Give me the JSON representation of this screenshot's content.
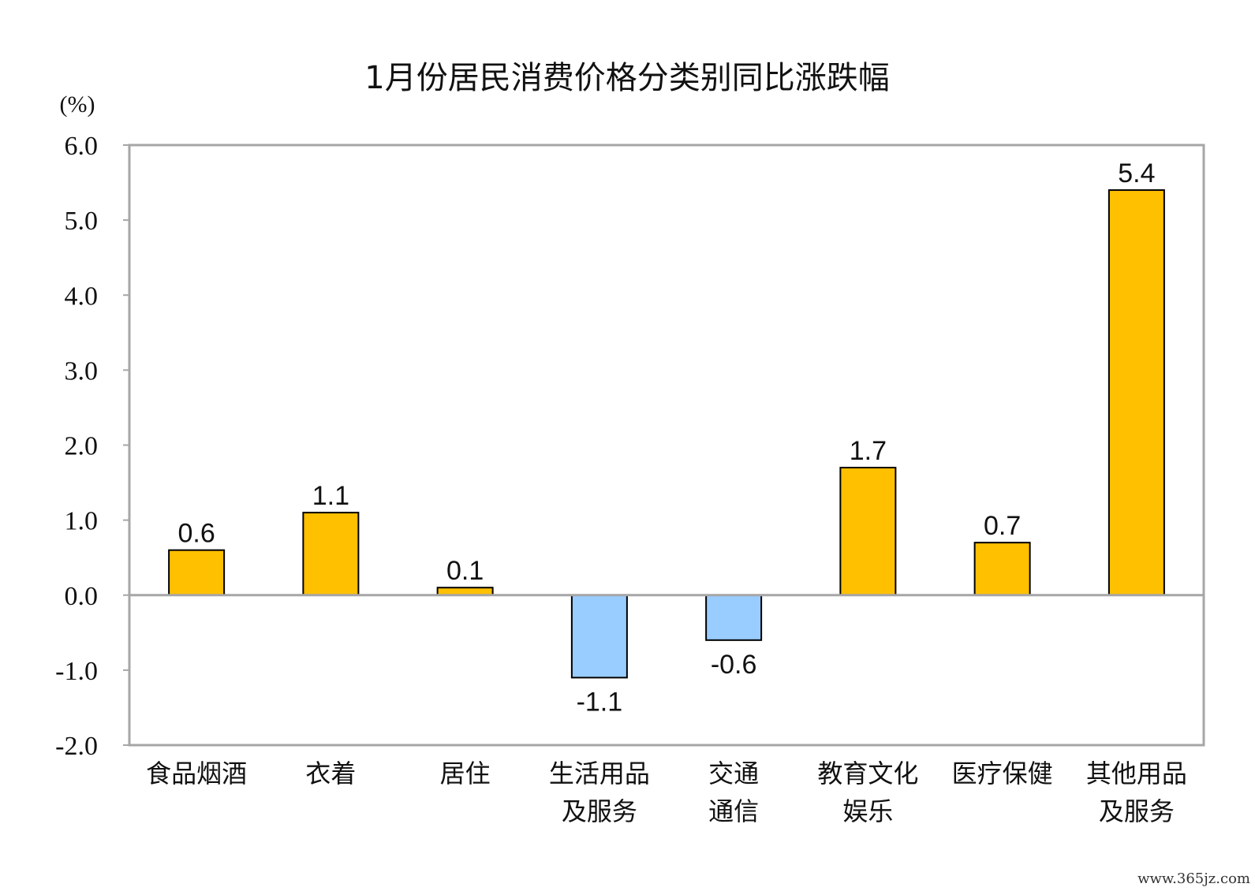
{
  "chart_data": {
    "type": "bar",
    "title": "1月份居民消费价格分类别同比涨跌幅",
    "unit": "(%)",
    "categories": [
      [
        "食品烟酒"
      ],
      [
        "衣着"
      ],
      [
        "居住"
      ],
      [
        "生活用品",
        "及服务"
      ],
      [
        "交通",
        "通信"
      ],
      [
        "教育文化",
        "娱乐"
      ],
      [
        "医疗保健"
      ],
      [
        "其他用品",
        "及服务"
      ]
    ],
    "values": [
      0.6,
      1.1,
      0.1,
      -1.1,
      -0.6,
      1.7,
      0.7,
      5.4
    ],
    "value_labels": [
      "0.6",
      "1.1",
      "0.1",
      "-1.1",
      "-0.6",
      "1.7",
      "0.7",
      "5.4"
    ],
    "ylim": [
      -2.0,
      6.0
    ],
    "yticks": [
      "6.0",
      "5.0",
      "4.0",
      "3.0",
      "2.0",
      "1.0",
      "0.0",
      "-1.0",
      "-2.0"
    ],
    "ytick_values": [
      6,
      5,
      4,
      3,
      2,
      1,
      0,
      -1,
      -2
    ],
    "grid": false,
    "colors": {
      "positive": "#FFC000",
      "negative": "#99CCFF",
      "frame": "#A6A6A6",
      "bar_edge": "#000000"
    }
  },
  "watermark": "www.365jz.com"
}
